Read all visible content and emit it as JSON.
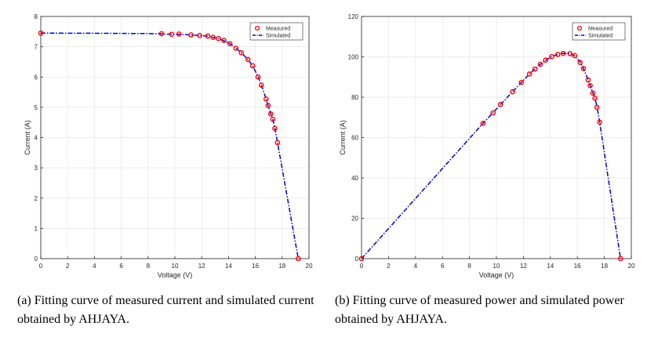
{
  "captions": {
    "a": "(a) Fitting curve of measured current and simulated current obtained by AHJAYA.",
    "b": "(b) Fitting curve of measured power and simulated power obtained by AHJAYA."
  },
  "colors": {
    "measured": "#ff0000",
    "simulated": "#0000cc",
    "axis": "#262626",
    "grid": "#e6e6e6"
  },
  "chart_data": [
    {
      "type": "line",
      "title": "",
      "xlabel": "Voltage (V)",
      "ylabel": "Current (A)",
      "xlim": [
        0,
        20
      ],
      "ylim": [
        0,
        8
      ],
      "xticks": [
        0,
        2,
        4,
        6,
        8,
        10,
        12,
        14,
        16,
        18,
        20
      ],
      "yticks": [
        0,
        1,
        2,
        3,
        4,
        5,
        6,
        7,
        8
      ],
      "grid": true,
      "legend_position": "top-right",
      "series": [
        {
          "name": "Measured",
          "style": "markers",
          "x": [
            0,
            9.0,
            9.75,
            10.3,
            11.2,
            11.85,
            12.45,
            12.85,
            13.25,
            13.65,
            14.1,
            14.55,
            14.95,
            15.45,
            15.8,
            16.2,
            16.45,
            16.8,
            16.95,
            17.15,
            17.3,
            17.45,
            17.65,
            19.2
          ],
          "y": [
            7.45,
            7.43,
            7.41,
            7.42,
            7.39,
            7.37,
            7.35,
            7.31,
            7.27,
            7.21,
            7.1,
            6.95,
            6.8,
            6.58,
            6.37,
            6.0,
            5.73,
            5.27,
            5.06,
            4.78,
            4.6,
            4.3,
            3.83,
            0.0
          ]
        },
        {
          "name": "Simulated",
          "style": "dash-dot",
          "x": [
            0,
            4,
            8,
            9.75,
            10.3,
            11.2,
            11.85,
            12.45,
            12.85,
            13.25,
            13.65,
            14.1,
            14.55,
            14.95,
            15.45,
            15.8,
            16.2,
            16.45,
            16.8,
            16.95,
            17.15,
            17.3,
            17.45,
            17.65,
            19.2
          ],
          "y": [
            7.45,
            7.445,
            7.435,
            7.415,
            7.41,
            7.39,
            7.37,
            7.35,
            7.31,
            7.27,
            7.2,
            7.1,
            6.96,
            6.8,
            6.58,
            6.36,
            6.02,
            5.73,
            5.28,
            5.06,
            4.79,
            4.6,
            4.32,
            3.84,
            0.0
          ]
        }
      ]
    },
    {
      "type": "line",
      "title": "",
      "xlabel": "Voltage (V)",
      "ylabel": "Current (A)",
      "xlim": [
        0,
        20
      ],
      "ylim": [
        0,
        120
      ],
      "xticks": [
        0,
        2,
        4,
        6,
        8,
        10,
        12,
        14,
        16,
        18,
        20
      ],
      "yticks": [
        0,
        20,
        40,
        60,
        80,
        100,
        120
      ],
      "grid": true,
      "legend_position": "top-right",
      "series": [
        {
          "name": "Measured",
          "style": "markers",
          "x": [
            0,
            9.0,
            9.75,
            10.3,
            11.2,
            11.85,
            12.45,
            12.85,
            13.25,
            13.65,
            14.1,
            14.55,
            14.95,
            15.45,
            15.8,
            16.2,
            16.45,
            16.8,
            16.95,
            17.15,
            17.3,
            17.45,
            17.65,
            19.2
          ],
          "y": [
            0,
            67.0,
            72.2,
            76.4,
            82.7,
            87.3,
            91.5,
            93.9,
            96.3,
            98.4,
            100.1,
            101.2,
            101.7,
            101.6,
            100.6,
            97.2,
            94.2,
            88.5,
            85.7,
            82.0,
            79.5,
            75.0,
            67.6,
            0
          ]
        },
        {
          "name": "Simulated",
          "style": "dash-dot",
          "x": [
            0,
            9.0,
            9.75,
            10.3,
            11.2,
            11.85,
            12.45,
            12.85,
            13.25,
            13.65,
            14.1,
            14.55,
            14.95,
            15.45,
            15.8,
            16.2,
            16.45,
            16.8,
            16.95,
            17.15,
            17.3,
            17.45,
            17.65,
            19.2
          ],
          "y": [
            0,
            67.0,
            72.3,
            76.3,
            82.8,
            87.3,
            91.5,
            93.9,
            96.3,
            98.3,
            100.1,
            101.3,
            101.7,
            101.6,
            100.5,
            97.5,
            94.2,
            88.7,
            85.8,
            82.1,
            79.6,
            75.4,
            67.8,
            0
          ]
        }
      ]
    }
  ]
}
